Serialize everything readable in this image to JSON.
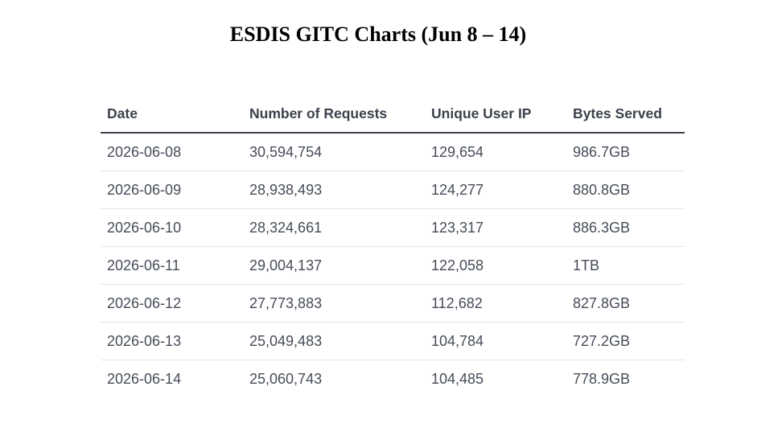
{
  "title": "ESDIS GITC Charts (Jun 8 – 14)",
  "table": {
    "headers": [
      "Date",
      "Number of Requests",
      "Unique User IP",
      "Bytes Served"
    ],
    "rows": [
      [
        "2026-06-08",
        "30,594,754",
        "129,654",
        "986.7GB"
      ],
      [
        "2026-06-09",
        "28,938,493",
        "124,277",
        "880.8GB"
      ],
      [
        "2026-06-10",
        "28,324,661",
        "123,317",
        "886.3GB"
      ],
      [
        "2026-06-11",
        "29,004,137",
        "122,058",
        "1TB"
      ],
      [
        "2026-06-12",
        "27,773,883",
        "112,682",
        "827.8GB"
      ],
      [
        "2026-06-13",
        "25,049,483",
        "104,784",
        "727.2GB"
      ],
      [
        "2026-06-14",
        "25,060,743",
        "104,485",
        "778.9GB"
      ]
    ]
  }
}
